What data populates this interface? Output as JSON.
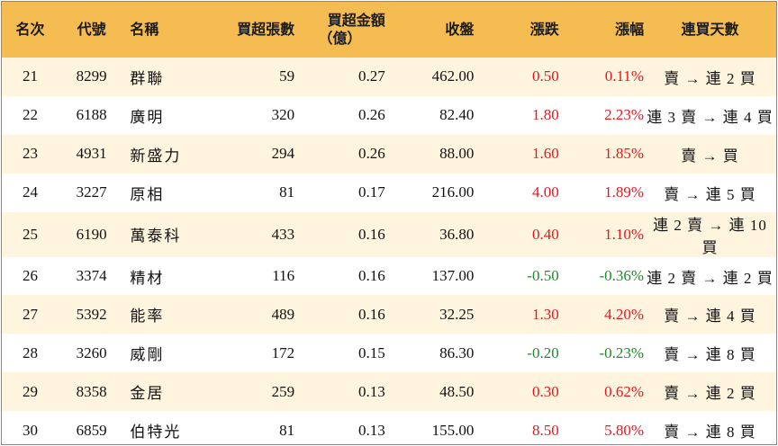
{
  "headers": {
    "rank": "名次",
    "code": "代號",
    "name": "名稱",
    "net_buy_lots": "買超張數",
    "net_buy_amount_line1": "買超金額",
    "net_buy_amount_line2": "（億）",
    "close": "收盤",
    "change": "漲跌",
    "change_pct": "漲幅",
    "streak": "連買天數"
  },
  "rows": [
    {
      "rank": "21",
      "code": "8299",
      "name": "群聯",
      "lots": "59",
      "amount": "0.27",
      "close": "462.00",
      "change": "0.50",
      "pct": "0.11%",
      "streak": "賣 → 連 2 買",
      "dir": "up"
    },
    {
      "rank": "22",
      "code": "6188",
      "name": "廣明",
      "lots": "320",
      "amount": "0.26",
      "close": "82.40",
      "change": "1.80",
      "pct": "2.23%",
      "streak": "連 3 賣 → 連 4 買",
      "dir": "up"
    },
    {
      "rank": "23",
      "code": "4931",
      "name": "新盛力",
      "lots": "294",
      "amount": "0.26",
      "close": "88.00",
      "change": "1.60",
      "pct": "1.85%",
      "streak": "賣 → 買",
      "dir": "up"
    },
    {
      "rank": "24",
      "code": "3227",
      "name": "原相",
      "lots": "81",
      "amount": "0.17",
      "close": "216.00",
      "change": "4.00",
      "pct": "1.89%",
      "streak": "賣 → 連 5 買",
      "dir": "up"
    },
    {
      "rank": "25",
      "code": "6190",
      "name": "萬泰科",
      "lots": "433",
      "amount": "0.16",
      "close": "36.80",
      "change": "0.40",
      "pct": "1.10%",
      "streak": "連 2 賣 → 連 10 買",
      "dir": "up"
    },
    {
      "rank": "26",
      "code": "3374",
      "name": "精材",
      "lots": "116",
      "amount": "0.16",
      "close": "137.00",
      "change": "-0.50",
      "pct": "-0.36%",
      "streak": "連 2 賣 → 連 2 買",
      "dir": "down"
    },
    {
      "rank": "27",
      "code": "5392",
      "name": "能率",
      "lots": "489",
      "amount": "0.16",
      "close": "32.25",
      "change": "1.30",
      "pct": "4.20%",
      "streak": "賣 → 連 4 買",
      "dir": "up"
    },
    {
      "rank": "28",
      "code": "3260",
      "name": "威剛",
      "lots": "172",
      "amount": "0.15",
      "close": "86.30",
      "change": "-0.20",
      "pct": "-0.23%",
      "streak": "賣 → 連 8 買",
      "dir": "down"
    },
    {
      "rank": "29",
      "code": "8358",
      "name": "金居",
      "lots": "259",
      "amount": "0.13",
      "close": "48.50",
      "change": "0.30",
      "pct": "0.62%",
      "streak": "賣 → 連 2 買",
      "dir": "up"
    },
    {
      "rank": "30",
      "code": "6859",
      "name": "伯特光",
      "lots": "81",
      "amount": "0.13",
      "close": "155.00",
      "change": "8.50",
      "pct": "5.80%",
      "streak": "賣 → 連 8 買",
      "dir": "up"
    }
  ],
  "colors": {
    "header_bg": "#f5bc52",
    "row_alt_bg": "#fff4de",
    "up": "#e8151f",
    "down": "#1d8a2c"
  }
}
